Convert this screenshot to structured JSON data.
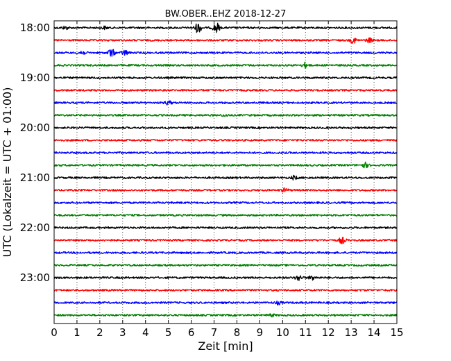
{
  "chart_data": {
    "type": "line",
    "title": "BW.OBER..EHZ 2018-12-27",
    "xlabel": "Zeit  [min]",
    "ylabel": "UTC (Lokalzeit = UTC + 01:00)",
    "xlim": [
      0,
      15
    ],
    "x_ticks": [
      "0",
      "1",
      "2",
      "3",
      "4",
      "5",
      "6",
      "7",
      "8",
      "9",
      "10",
      "11",
      "12",
      "13",
      "14",
      "15"
    ],
    "y_tick_labels": [
      "18:00",
      "19:00",
      "20:00",
      "21:00",
      "22:00",
      "23:00"
    ],
    "grid": "vertical dotted, every 1 min",
    "colors": [
      "#000000",
      "#ff0000",
      "#0000ff",
      "#008000"
    ],
    "traces": [
      {
        "start": "18:00",
        "color": "#000000",
        "events": [
          [
            0.5,
            0.3
          ],
          [
            2.2,
            0.25
          ],
          [
            6.3,
            1.0
          ],
          [
            7.1,
            1.0
          ]
        ]
      },
      {
        "start": "18:15",
        "color": "#ff0000",
        "events": [
          [
            13.1,
            0.55
          ],
          [
            13.8,
            0.45
          ]
        ]
      },
      {
        "start": "18:30",
        "color": "#0000ff",
        "events": [
          [
            1.2,
            0.5
          ],
          [
            2.5,
            0.8
          ],
          [
            3.1,
            0.5
          ]
        ]
      },
      {
        "start": "18:45",
        "color": "#008000",
        "events": [
          [
            11.0,
            0.5
          ]
        ]
      },
      {
        "start": "19:00",
        "color": "#000000",
        "events": []
      },
      {
        "start": "19:15",
        "color": "#ff0000",
        "events": []
      },
      {
        "start": "19:30",
        "color": "#0000ff",
        "events": [
          [
            5.0,
            0.35
          ]
        ]
      },
      {
        "start": "19:45",
        "color": "#008000",
        "events": [
          [
            7.5,
            0.2
          ]
        ]
      },
      {
        "start": "20:00",
        "color": "#000000",
        "events": []
      },
      {
        "start": "20:15",
        "color": "#ff0000",
        "events": []
      },
      {
        "start": "20:30",
        "color": "#0000ff",
        "events": []
      },
      {
        "start": "20:45",
        "color": "#008000",
        "events": [
          [
            13.6,
            0.5
          ]
        ]
      },
      {
        "start": "21:00",
        "color": "#000000",
        "events": [
          [
            10.5,
            0.35
          ]
        ]
      },
      {
        "start": "21:15",
        "color": "#ff0000",
        "events": [
          [
            10.1,
            0.35
          ]
        ]
      },
      {
        "start": "21:30",
        "color": "#0000ff",
        "events": []
      },
      {
        "start": "21:45",
        "color": "#008000",
        "events": []
      },
      {
        "start": "22:00",
        "color": "#000000",
        "events": []
      },
      {
        "start": "22:15",
        "color": "#ff0000",
        "events": [
          [
            12.6,
            0.6
          ]
        ]
      },
      {
        "start": "22:30",
        "color": "#0000ff",
        "events": []
      },
      {
        "start": "22:45",
        "color": "#008000",
        "events": []
      },
      {
        "start": "23:00",
        "color": "#000000",
        "events": [
          [
            10.7,
            0.55
          ],
          [
            11.3,
            0.45
          ]
        ]
      },
      {
        "start": "23:15",
        "color": "#ff0000",
        "events": []
      },
      {
        "start": "23:30",
        "color": "#0000ff",
        "events": [
          [
            9.8,
            0.3
          ]
        ]
      },
      {
        "start": "23:45",
        "color": "#008000",
        "events": [
          [
            9.5,
            0.25
          ]
        ]
      }
    ]
  }
}
